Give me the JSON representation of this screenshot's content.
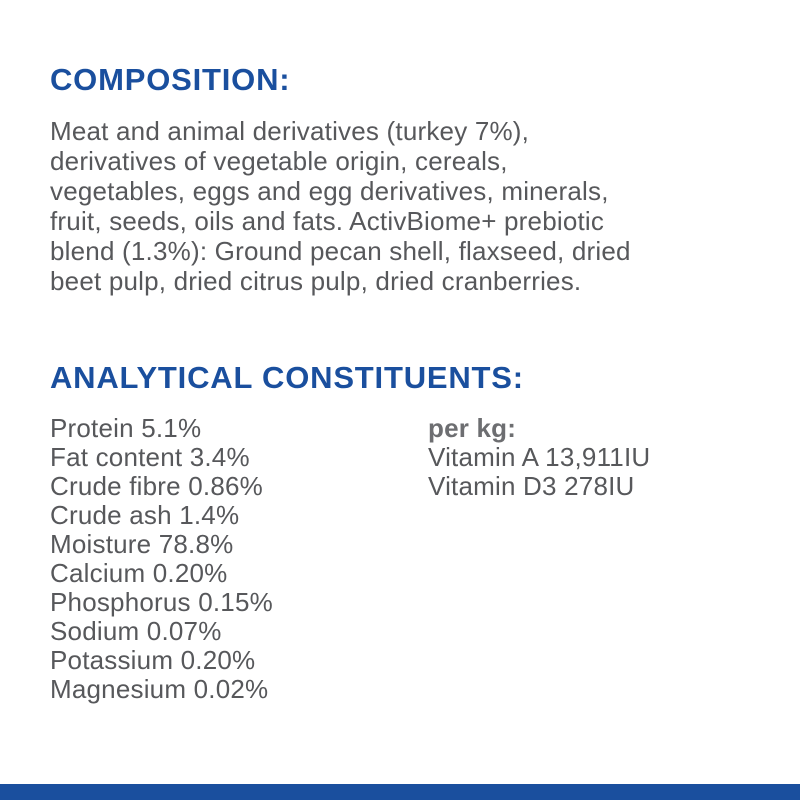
{
  "theme": {
    "background": "#ffffff",
    "accent_blue": "#1a4f9e",
    "body_text_color": "#57585b",
    "per_kg_label_color": "#6d6e71"
  },
  "composition": {
    "heading": "COMPOSITION:",
    "body_lines": [
      "Meat and animal derivatives (turkey 7%),",
      "derivatives of vegetable origin, cereals,",
      "vegetables, eggs and egg derivatives, minerals,",
      "fruit, seeds, oils and fats. ActivBiome+ prebiotic",
      "blend (1.3%): Ground pecan shell, flaxseed, dried",
      "beet pulp, dried citrus pulp, dried cranberries."
    ]
  },
  "analytical_constituents": {
    "heading": "ANALYTICAL CONSTITUENTS:",
    "items": [
      {
        "label": "Protein",
        "value": "5.1%"
      },
      {
        "label": "Fat content",
        "value": "3.4%"
      },
      {
        "label": "Crude fibre",
        "value": "0.86%"
      },
      {
        "label": "Crude ash",
        "value": "1.4%"
      },
      {
        "label": "Moisture",
        "value": "78.8%"
      },
      {
        "label": "Calcium",
        "value": "0.20%"
      },
      {
        "label": "Phosphorus",
        "value": "0.15%"
      },
      {
        "label": "Sodium",
        "value": "0.07%"
      },
      {
        "label": "Potassium",
        "value": "0.20%"
      },
      {
        "label": "Magnesium",
        "value": "0.02%"
      }
    ],
    "per_kg": {
      "heading": "per kg:",
      "items": [
        {
          "label": "Vitamin A",
          "value": "13,911IU"
        },
        {
          "label": "Vitamin D3",
          "value": "278IU"
        }
      ]
    }
  }
}
